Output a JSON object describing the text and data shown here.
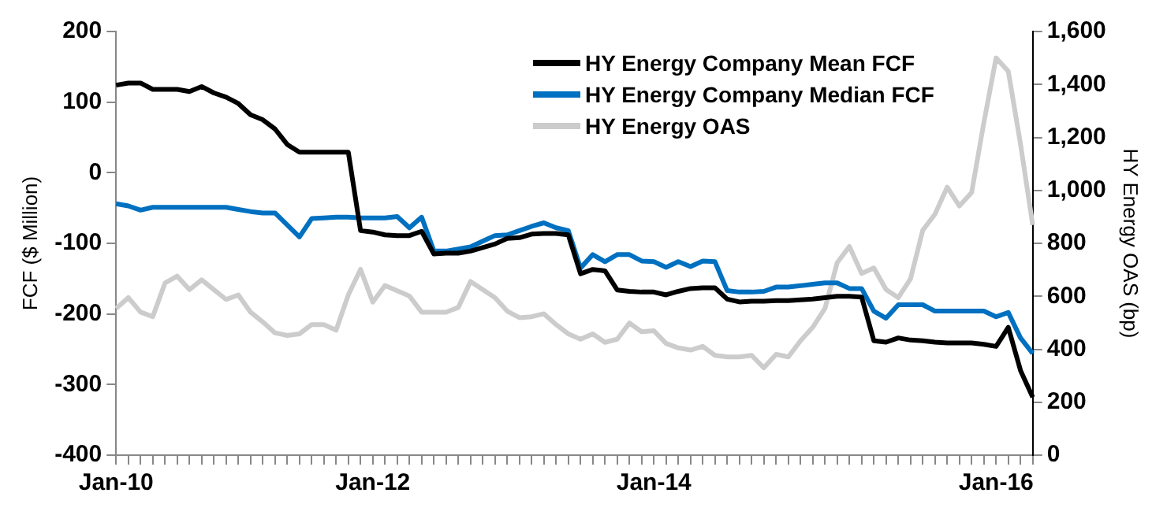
{
  "chart_data": {
    "type": "line",
    "categories": [
      "Jan-10",
      null,
      null,
      null,
      null,
      null,
      null,
      null,
      null,
      null,
      null,
      null,
      null,
      null,
      null,
      null,
      null,
      null,
      null,
      null,
      null,
      "Jan-12",
      null,
      null,
      null,
      null,
      null,
      null,
      null,
      null,
      null,
      null,
      null,
      null,
      null,
      null,
      null,
      null,
      null,
      null,
      null,
      null,
      null,
      null,
      "Jan-14",
      null,
      null,
      null,
      null,
      null,
      null,
      null,
      null,
      null,
      null,
      null,
      null,
      null,
      null,
      null,
      null,
      null,
      null,
      null,
      null,
      null,
      null,
      null,
      null,
      null,
      null,
      null,
      "Jan-16",
      null,
      null,
      null
    ],
    "series": [
      {
        "name": "HY Energy Company Mean FCF",
        "color": "#000000",
        "values": [
          124,
          127,
          127,
          118,
          118,
          118,
          115,
          122,
          113,
          107,
          98,
          82,
          75,
          62,
          40,
          29,
          29,
          29,
          29,
          29,
          -82,
          -84,
          -88,
          -89,
          -89,
          -83,
          -115,
          -114,
          -114,
          -111,
          -106,
          -101,
          -93,
          -92,
          -87,
          -86,
          -86,
          -88,
          -143,
          -137,
          -139,
          -166,
          -168,
          -169,
          -169,
          -173,
          -168,
          -164,
          -163,
          -163,
          -179,
          -183,
          -182,
          -182,
          -181,
          -181,
          -180,
          -179,
          -177,
          -175,
          -175,
          -176,
          -238,
          -240,
          -234,
          -237,
          -238,
          -240,
          -241,
          -241,
          -241,
          -243,
          -246,
          -219,
          -280,
          -318
        ]
      },
      {
        "name": "HY Energy Company Median FCF",
        "color": "#0070c0",
        "values": [
          -44,
          -47,
          -53,
          -49,
          -49,
          -49,
          -49,
          -49,
          -49,
          -49,
          -52,
          -55,
          -57,
          -57,
          -74,
          -91,
          -65,
          -64,
          -63,
          -63,
          -64,
          -64,
          -64,
          -62,
          -78,
          -63,
          -111,
          -111,
          -108,
          -105,
          -97,
          -89,
          -88,
          -82,
          -76,
          -71,
          -78,
          -82,
          -135,
          -116,
          -126,
          -116,
          -116,
          -125,
          -126,
          -134,
          -126,
          -133,
          -125,
          -126,
          -167,
          -169,
          -169,
          -168,
          -162,
          -162,
          -160,
          -158,
          -156,
          -156,
          -164,
          -164,
          -196,
          -206,
          -187,
          -187,
          -187,
          -196,
          -196,
          -196,
          -196,
          -196,
          -204,
          -198,
          -234,
          -256
        ]
      },
      {
        "name": "HY Energy OAS",
        "color": "#cccccc",
        "axis": "y2",
        "values": [
          554,
          595,
          540,
          523,
          650,
          676,
          625,
          662,
          625,
          588,
          605,
          540,
          503,
          462,
          452,
          458,
          493,
          493,
          472,
          605,
          702,
          578,
          641,
          621,
          601,
          540,
          540,
          540,
          558,
          656,
          625,
          595,
          544,
          519,
          523,
          534,
          493,
          458,
          438,
          458,
          426,
          438,
          499,
          466,
          470,
          422,
          405,
          397,
          411,
          377,
          371,
          371,
          377,
          330,
          381,
          371,
          432,
          483,
          554,
          727,
          788,
          686,
          707,
          625,
          595,
          666,
          849,
          910,
          1012,
          941,
          992,
          1256,
          1500,
          1450,
          1175,
          869
        ]
      }
    ],
    "ylabel": "FCF ($ Million)",
    "y2label": "HY Energy OAS (bp)",
    "ylim": [
      -400,
      200
    ],
    "yticks": [
      -400,
      -300,
      -200,
      -100,
      0,
      100,
      200
    ],
    "y2lim": [
      0,
      1600
    ],
    "y2ticks": [
      0,
      200,
      400,
      600,
      800,
      {
        "value": 1000,
        "label": "1,000"
      },
      {
        "value": 1200,
        "label": "1,200"
      },
      {
        "value": 1400,
        "label": "1,400"
      },
      {
        "value": 1600,
        "label": "1,600"
      }
    ],
    "legend": "top right",
    "grid": false
  }
}
